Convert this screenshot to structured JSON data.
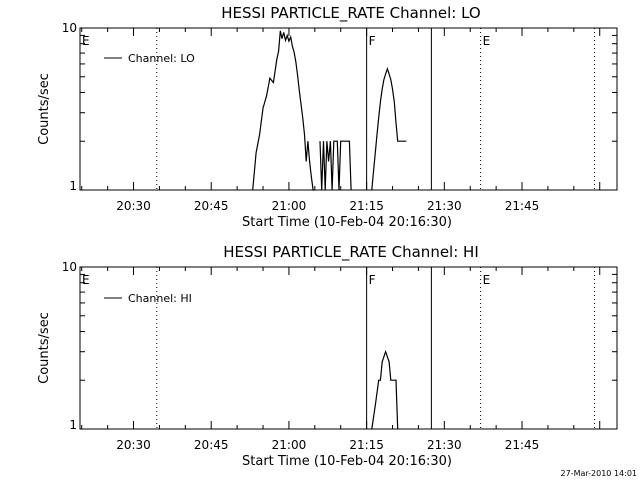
{
  "footer": {
    "timestamp": "27-Mar-2010 14:01"
  },
  "chart_data": [
    {
      "type": "line",
      "title": "HESSI PARTICLE_RATE Channel: LO",
      "xlabel": "Start Time (10-Feb-04 20:16:30)",
      "ylabel": "Counts/sec",
      "yscale": "log",
      "ylim": [
        1,
        10
      ],
      "ytick_labels": [
        "1",
        "10"
      ],
      "xlim": [
        "20:19:40",
        "22:03:20"
      ],
      "xtick_labels": [
        "20:30",
        "20:45",
        "21:00",
        "21:15",
        "21:30",
        "21:45"
      ],
      "legend": {
        "entries": [
          "Channel: LO"
        ],
        "position": "top-left"
      },
      "markers": [
        {
          "time": "20:19:40",
          "label": "E",
          "style": "dotted"
        },
        {
          "time": "20:34:30",
          "label": "",
          "style": "dotted"
        },
        {
          "time": "21:15:00",
          "label": "F",
          "style": "solid"
        },
        {
          "time": "21:27:30",
          "label": "",
          "style": "solid"
        },
        {
          "time": "21:37:00",
          "label": "E",
          "style": "dotted"
        },
        {
          "time": "21:59:00",
          "label": "",
          "style": "dotted"
        }
      ],
      "series": [
        {
          "name": "Channel: LO",
          "segments": [
            {
              "x": [
                "20:53:00",
                "20:53:40",
                "20:54:20",
                "20:55:00",
                "20:55:40",
                "20:56:20",
                "20:57:00",
                "20:57:40",
                "20:58:00",
                "20:58:20",
                "20:58:40",
                "20:59:00",
                "20:59:20",
                "20:59:40",
                "21:00:00",
                "21:00:20",
                "21:00:40",
                "21:01:00",
                "21:01:20",
                "21:01:40",
                "21:02:00",
                "21:02:20",
                "21:02:40",
                "21:03:00",
                "21:03:20",
                "21:03:40",
                "21:04:00",
                "21:04:20",
                "21:04:40",
                "21:05:00"
              ],
              "y": [
                1,
                1.7,
                2.2,
                3.2,
                3.8,
                4.9,
                4.6,
                6.4,
                7.2,
                9.6,
                8.6,
                9.4,
                8.4,
                9.0,
                8.3,
                8.8,
                7.7,
                7.1,
                6.2,
                5.1,
                4.1,
                3.4,
                2.8,
                2.2,
                1.5,
                2.0,
                1.5,
                1.2,
                1.0,
                1.0
              ]
            },
            {
              "x": [
                "21:06:00",
                "21:06:20",
                "21:06:40",
                "21:07:00",
                "21:07:20",
                "21:07:40",
                "21:08:00",
                "21:08:20",
                "21:08:40",
                "21:09:00",
                "21:09:20",
                "21:09:40",
                "21:10:00",
                "21:10:20",
                "21:10:40",
                "21:11:00",
                "21:11:20",
                "21:11:40",
                "21:12:00"
              ],
              "y": [
                2.0,
                1.0,
                2.0,
                1.0,
                2.0,
                1.5,
                2.0,
                1.0,
                2.0,
                2.0,
                2.0,
                1.0,
                2.0,
                2.0,
                2.0,
                2.0,
                2.0,
                2.0,
                1.0
              ]
            },
            {
              "x": [
                "21:16:00",
                "21:16:20",
                "21:16:40",
                "21:17:00",
                "21:17:20",
                "21:17:40",
                "21:18:00",
                "21:18:20",
                "21:18:40",
                "21:19:00",
                "21:19:20",
                "21:19:40",
                "21:20:00",
                "21:20:20",
                "21:20:40",
                "21:21:00",
                "21:21:20",
                "21:21:40",
                "21:22:00",
                "21:22:20",
                "21:22:40"
              ],
              "y": [
                1.0,
                1.3,
                1.7,
                2.2,
                2.8,
                3.5,
                4.2,
                4.8,
                5.2,
                5.6,
                5.2,
                4.8,
                4.2,
                3.5,
                2.6,
                2.0,
                2.0,
                2.0,
                2.0,
                2.0,
                2.0
              ]
            }
          ]
        }
      ]
    },
    {
      "type": "line",
      "title": "HESSI PARTICLE_RATE Channel: HI",
      "xlabel": "Start Time (10-Feb-04 20:16:30)",
      "ylabel": "Counts/sec",
      "yscale": "log",
      "ylim": [
        1,
        10
      ],
      "ytick_labels": [
        "1",
        "10"
      ],
      "xlim": [
        "20:19:40",
        "22:03:20"
      ],
      "xtick_labels": [
        "20:30",
        "20:45",
        "21:00",
        "21:15",
        "21:30",
        "21:45"
      ],
      "legend": {
        "entries": [
          "Channel: HI"
        ],
        "position": "top-left"
      },
      "markers": [
        {
          "time": "20:19:40",
          "label": "E",
          "style": "dotted"
        },
        {
          "time": "20:34:30",
          "label": "",
          "style": "dotted"
        },
        {
          "time": "21:15:00",
          "label": "F",
          "style": "solid"
        },
        {
          "time": "21:27:30",
          "label": "",
          "style": "solid"
        },
        {
          "time": "21:37:00",
          "label": "E",
          "style": "dotted"
        },
        {
          "time": "21:59:00",
          "label": "",
          "style": "dotted"
        }
      ],
      "series": [
        {
          "name": "Channel: HI",
          "segments": [
            {
              "x": [
                "21:16:00",
                "21:16:40",
                "21:17:20",
                "21:17:40",
                "21:18:00",
                "21:18:40",
                "21:19:20",
                "21:19:40",
                "21:20:00",
                "21:20:40",
                "21:21:00"
              ],
              "y": [
                1.0,
                1.4,
                2.0,
                2.0,
                2.6,
                3.0,
                2.6,
                2.0,
                2.0,
                2.0,
                1.0
              ]
            }
          ]
        }
      ]
    }
  ]
}
